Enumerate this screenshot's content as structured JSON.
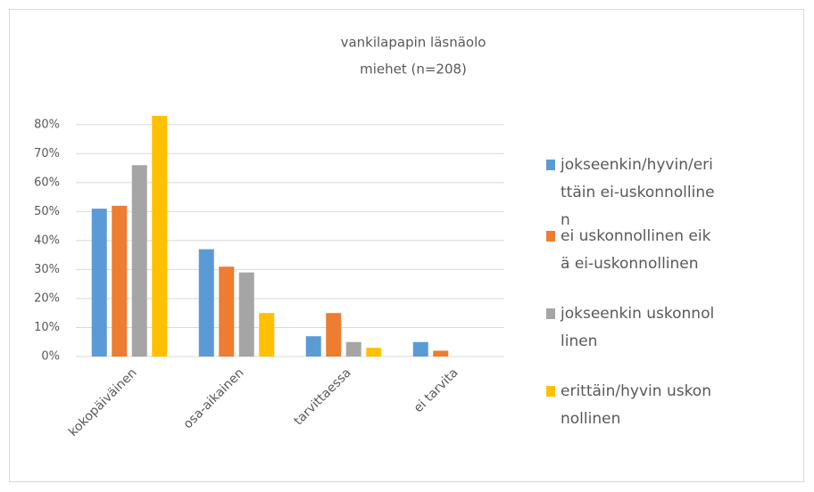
{
  "chart_data": {
    "type": "bar",
    "title": "vankilapapin läsnäolo",
    "subtitle": "miehet (n=208)",
    "categories": [
      "kokopäiväinen",
      "osa-aikainen",
      "tarvittaessa",
      "ei tarvita"
    ],
    "series": [
      {
        "name": "jokseenkin/hyvin/erittäin ei-uskonnollinen",
        "color": "#5b9bd5",
        "values": [
          51,
          37,
          7,
          5
        ]
      },
      {
        "name": "ei uskonnollinen eikä ei-uskonnollinen",
        "color": "#ed7d31",
        "values": [
          52,
          31,
          15,
          2
        ]
      },
      {
        "name": "jokseenkin uskonnollinen",
        "color": "#a5a5a5",
        "values": [
          66,
          29,
          5,
          0
        ]
      },
      {
        "name": "erittäin/hyvin uskonnollinen",
        "color": "#ffc000",
        "values": [
          83,
          15,
          3,
          0
        ]
      }
    ],
    "ylim": [
      0,
      83
    ],
    "yticks": [
      {
        "value": 0,
        "label": "0%"
      },
      {
        "value": 10,
        "label": "10%"
      },
      {
        "value": 20,
        "label": "20%"
      },
      {
        "value": 30,
        "label": "30%"
      },
      {
        "value": 40,
        "label": "40%"
      },
      {
        "value": 50,
        "label": "50%"
      },
      {
        "value": 60,
        "label": "60%"
      },
      {
        "value": 70,
        "label": "70%"
      },
      {
        "value": 80,
        "label": "80%"
      }
    ],
    "grid": true,
    "legend": "right"
  }
}
